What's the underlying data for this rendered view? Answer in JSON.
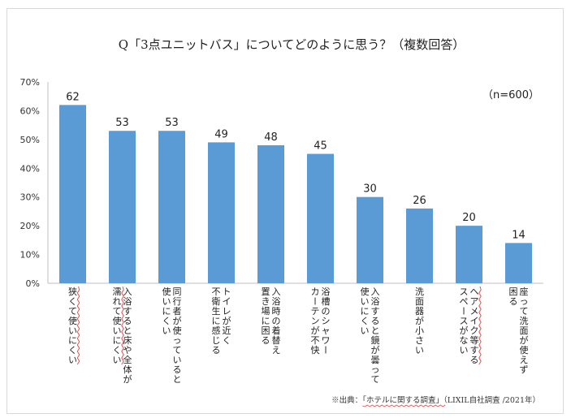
{
  "chart_data": {
    "type": "bar",
    "title": "Q「3点ユニットバス」についてどのように思う？（複数回答）",
    "sample_note": "（n=600）",
    "y_ticks": [
      "0%",
      "10%",
      "20%",
      "30%",
      "40%",
      "50%",
      "60%",
      "70%"
    ],
    "ylim": [
      0,
      70
    ],
    "categories": [
      [
        "狭くて使いにくい"
      ],
      [
        "入浴すると床や全体が",
        "濡れて使いにくい"
      ],
      [
        "同行者が使っていると",
        "使いにくい"
      ],
      [
        "トイレが近く",
        "不衛生に感じる"
      ],
      [
        "入浴時の着替え",
        "置き場に困る"
      ],
      [
        "浴槽のシャワー",
        "カーテンが不快"
      ],
      [
        "入浴すると鏡が曇って",
        "使いにくい"
      ],
      [
        "洗面器が小さい"
      ],
      [
        "ヘアメイク等する",
        "スペースがない"
      ],
      [
        "座って洗面が使えず",
        "困る"
      ]
    ],
    "values": [
      62,
      53,
      53,
      49,
      48,
      45,
      30,
      26,
      20,
      14
    ],
    "bar_color": "#5b9bd5",
    "axis_color": "#bfbfbf",
    "underline_color": "#e84d4d",
    "underlined_columns": [
      "狭くて使いにくい",
      "濡れて使いにくい",
      "ヘアメイク等する"
    ],
    "source": {
      "prefix": "※出典：",
      "highlighted": "「ホテルに関する調査」",
      "suffix": "（LIXIL自社調査 /2021年）"
    }
  }
}
